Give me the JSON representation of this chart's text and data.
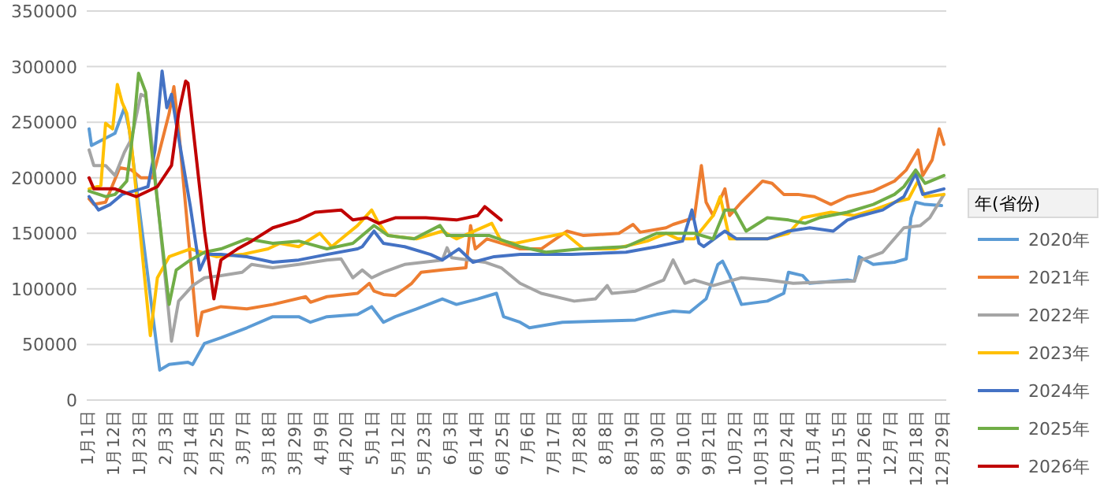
{
  "chart_data": {
    "type": "line",
    "legend_title": "年(省份)",
    "legend": "right",
    "grid": "y",
    "line_style": "solid",
    "ylim": [
      0,
      350000
    ],
    "yticks": [
      0,
      50000,
      100000,
      150000,
      200000,
      250000,
      300000,
      350000
    ],
    "xlim": [
      "--01-01",
      "--12-31"
    ],
    "xticks": [
      {
        "value": "--01-01",
        "label": "1月1日"
      },
      {
        "value": "--01-12",
        "label": "1月12日"
      },
      {
        "value": "--01-23",
        "label": "1月23日"
      },
      {
        "value": "--02-03",
        "label": "2月3日"
      },
      {
        "value": "--02-14",
        "label": "2月14日"
      },
      {
        "value": "--02-25",
        "label": "2月25日"
      },
      {
        "value": "--03-07",
        "label": "3月7日"
      },
      {
        "value": "--03-18",
        "label": "3月18日"
      },
      {
        "value": "--03-29",
        "label": "3月29日"
      },
      {
        "value": "--04-09",
        "label": "4月9日"
      },
      {
        "value": "--04-20",
        "label": "4月20日"
      },
      {
        "value": "--05-01",
        "label": "5月1日"
      },
      {
        "value": "--05-12",
        "label": "5月12日"
      },
      {
        "value": "--05-23",
        "label": "5月23日"
      },
      {
        "value": "--06-03",
        "label": "6月3日"
      },
      {
        "value": "--06-14",
        "label": "6月14日"
      },
      {
        "value": "--06-25",
        "label": "6月25日"
      },
      {
        "value": "--07-06",
        "label": "7月6日"
      },
      {
        "value": "--07-17",
        "label": "7月17日"
      },
      {
        "value": "--07-28",
        "label": "7月28日"
      },
      {
        "value": "--08-08",
        "label": "8月8日"
      },
      {
        "value": "--08-19",
        "label": "8月19日"
      },
      {
        "value": "--08-30",
        "label": "8月30日"
      },
      {
        "value": "--09-10",
        "label": "9月10日"
      },
      {
        "value": "--09-21",
        "label": "9月21日"
      },
      {
        "value": "--10-02",
        "label": "10月2日"
      },
      {
        "value": "--10-13",
        "label": "10月13日"
      },
      {
        "value": "--10-24",
        "label": "10月24日"
      },
      {
        "value": "--11-04",
        "label": "11月4日"
      },
      {
        "value": "--11-15",
        "label": "11月15日"
      },
      {
        "value": "--11-26",
        "label": "11月26日"
      },
      {
        "value": "--12-07",
        "label": "12月7日"
      },
      {
        "value": "--12-18",
        "label": "12月18日"
      },
      {
        "value": "--12-29",
        "label": "12月29日"
      }
    ],
    "series": [
      {
        "name": "2020年",
        "color": "#5b9bd5",
        "x": [
          "--01-02",
          "--01-03",
          "--01-13",
          "--01-17",
          "--01-19",
          "--02-01",
          "--02-05",
          "--02-13",
          "--02-15",
          "--02-20",
          "--02-27",
          "--03-09",
          "--03-20",
          "--03-31",
          "--04-05",
          "--04-12",
          "--04-25",
          "--05-01",
          "--05-06",
          "--05-11",
          "--05-20",
          "--05-31",
          "--06-06",
          "--06-15",
          "--06-23",
          "--06-26",
          "--07-03",
          "--07-07",
          "--07-21",
          "--08-06",
          "--08-21",
          "--08-30",
          "--09-06",
          "--09-13",
          "--09-20",
          "--09-25",
          "--09-27",
          "--09-30",
          "--10-05",
          "--10-16",
          "--10-23",
          "--10-25",
          "--10-31",
          "--11-03",
          "--11-19",
          "--11-22",
          "--11-24",
          "--11-30",
          "--12-09",
          "--12-14",
          "--12-16",
          "--12-18",
          "--12-22",
          "--12-29"
        ],
        "values": [
          244000,
          229000,
          240000,
          263000,
          244000,
          27000,
          32000,
          34000,
          32000,
          51000,
          56000,
          65000,
          75000,
          75000,
          70000,
          75000,
          77000,
          84000,
          70000,
          75000,
          82000,
          91000,
          86000,
          91000,
          96000,
          75000,
          70000,
          65000,
          70000,
          71000,
          72000,
          77000,
          80000,
          79000,
          91000,
          122000,
          125000,
          112000,
          86000,
          89000,
          96000,
          115000,
          112000,
          105000,
          108000,
          107000,
          129000,
          122000,
          124000,
          127000,
          164000,
          178000,
          176000,
          175000
        ]
      },
      {
        "name": "2021年",
        "color": "#ed7d31",
        "x": [
          "--01-02",
          "--01-04",
          "--01-09",
          "--01-15",
          "--01-20",
          "--01-24",
          "--01-29",
          "--02-05",
          "--02-07",
          "--02-09",
          "--02-17",
          "--02-19",
          "--02-27",
          "--03-09",
          "--03-20",
          "--04-03",
          "--04-05",
          "--04-12",
          "--04-25",
          "--04-30",
          "--05-02",
          "--05-06",
          "--05-11",
          "--05-18",
          "--05-22",
          "--05-31",
          "--06-10",
          "--06-12",
          "--06-14",
          "--06-19",
          "--07-03",
          "--07-12",
          "--07-23",
          "--07-30",
          "--08-14",
          "--08-20",
          "--08-23",
          "--09-03",
          "--09-06",
          "--09-15",
          "--09-18",
          "--09-20",
          "--09-23",
          "--09-28",
          "--09-30",
          "--10-05",
          "--10-14",
          "--10-18",
          "--10-23",
          "--10-29",
          "--11-05",
          "--11-12",
          "--11-19",
          "--11-30",
          "--12-09",
          "--12-14",
          "--12-19",
          "--12-21",
          "--12-25",
          "--12-28",
          "--12-30"
        ],
        "values": [
          181000,
          176000,
          178000,
          209000,
          207000,
          200000,
          200000,
          258000,
          282000,
          244000,
          58000,
          79000,
          84000,
          82000,
          86000,
          93000,
          88000,
          93000,
          96000,
          105000,
          98000,
          95000,
          94000,
          105000,
          115000,
          117000,
          119000,
          157000,
          136000,
          145000,
          136000,
          136000,
          152000,
          148000,
          150000,
          158000,
          151000,
          155000,
          158000,
          164000,
          211000,
          178000,
          166000,
          190000,
          166000,
          178000,
          197000,
          195000,
          185000,
          185000,
          183000,
          176000,
          183000,
          188000,
          197000,
          207000,
          225000,
          202000,
          216000,
          244000,
          230000
        ]
      },
      {
        "name": "2022年",
        "color": "#a5a5a5",
        "x": [
          "--01-02",
          "--01-04",
          "--01-09",
          "--01-13",
          "--01-17",
          "--01-20",
          "--01-24",
          "--01-26",
          "--01-28",
          "--02-06",
          "--02-09",
          "--02-15",
          "--02-20",
          "--02-27",
          "--03-07",
          "--03-11",
          "--03-20",
          "--03-31",
          "--04-12",
          "--04-18",
          "--04-23",
          "--04-27",
          "--05-01",
          "--05-06",
          "--05-15",
          "--05-31",
          "--06-02",
          "--06-04",
          "--06-18",
          "--06-25",
          "--07-03",
          "--07-12",
          "--07-26",
          "--08-04",
          "--08-09",
          "--08-11",
          "--08-21",
          "--09-02",
          "--09-06",
          "--09-11",
          "--09-15",
          "--09-23",
          "--10-05",
          "--10-16",
          "--10-27",
          "--11-07",
          "--11-22",
          "--11-25",
          "--12-04",
          "--12-13",
          "--12-20",
          "--12-24",
          "--12-30"
        ],
        "values": [
          225000,
          211000,
          211000,
          202000,
          223000,
          235000,
          275000,
          273000,
          244000,
          53000,
          89000,
          103000,
          110000,
          112000,
          115000,
          122000,
          119000,
          122000,
          126000,
          127000,
          110000,
          117000,
          110000,
          115000,
          122000,
          126000,
          137000,
          128000,
          124000,
          119000,
          105000,
          96000,
          89000,
          91000,
          103000,
          96000,
          98000,
          108000,
          126000,
          105000,
          108000,
          103000,
          110000,
          108000,
          105000,
          106000,
          107000,
          126000,
          133000,
          155000,
          157000,
          164000,
          185000
        ]
      },
      {
        "name": "2023年",
        "color": "#ffc000",
        "x": [
          "--01-02",
          "--01-07",
          "--01-09",
          "--01-12",
          "--01-14",
          "--01-16",
          "--01-18",
          "--01-20",
          "--01-28",
          "--01-31",
          "--02-05",
          "--02-14",
          "--02-25",
          "--03-07",
          "--03-18",
          "--03-23",
          "--03-31",
          "--04-09",
          "--04-14",
          "--04-25",
          "--05-01",
          "--05-04",
          "--05-08",
          "--05-20",
          "--05-31",
          "--06-06",
          "--06-21",
          "--06-25",
          "--07-01",
          "--07-10",
          "--07-22",
          "--07-30",
          "--08-12",
          "--08-26",
          "--09-03",
          "--09-08",
          "--09-15",
          "--09-23",
          "--09-26",
          "--09-30",
          "--10-16",
          "--10-25",
          "--10-31",
          "--11-12",
          "--11-22",
          "--11-30",
          "--12-09",
          "--12-15",
          "--12-19",
          "--12-22",
          "--12-30"
        ],
        "values": [
          190000,
          193000,
          249000,
          244000,
          284000,
          268000,
          258000,
          230000,
          58000,
          110000,
          129000,
          136000,
          129000,
          131000,
          136000,
          141000,
          138000,
          150000,
          138000,
          157000,
          171000,
          159000,
          148000,
          145000,
          152000,
          145000,
          159000,
          143000,
          141000,
          145000,
          150000,
          136000,
          136000,
          143000,
          150000,
          145000,
          145000,
          166000,
          183000,
          145000,
          145000,
          150000,
          164000,
          169000,
          166000,
          171000,
          178000,
          181000,
          197000,
          183000,
          185000
        ]
      },
      {
        "name": "2024年",
        "color": "#4472c4",
        "x": [
          "--01-02",
          "--01-06",
          "--01-11",
          "--01-16",
          "--01-24",
          "--01-27",
          "--01-30",
          "--02-02",
          "--02-04",
          "--02-06",
          "--02-08",
          "--02-14",
          "--02-18",
          "--02-21",
          "--02-27",
          "--03-09",
          "--03-20",
          "--03-31",
          "--04-12",
          "--04-25",
          "--04-27",
          "--05-02",
          "--05-06",
          "--05-15",
          "--05-26",
          "--05-31",
          "--06-07",
          "--06-13",
          "--06-22",
          "--07-03",
          "--07-25",
          "--08-17",
          "--08-30",
          "--09-10",
          "--09-14",
          "--09-17",
          "--09-19",
          "--09-28",
          "--10-03",
          "--10-16",
          "--10-25",
          "--11-03",
          "--11-13",
          "--11-19",
          "--11-25",
          "--12-04",
          "--12-13",
          "--12-18",
          "--12-21",
          "--12-30"
        ],
        "values": [
          183000,
          171000,
          176000,
          185000,
          190000,
          192000,
          225000,
          296000,
          263000,
          275000,
          249000,
          174000,
          117000,
          131000,
          131000,
          129000,
          124000,
          126000,
          131000,
          136000,
          138000,
          152000,
          141000,
          138000,
          131000,
          126000,
          136000,
          124000,
          129000,
          131000,
          131000,
          133000,
          138000,
          143000,
          171000,
          141000,
          138000,
          152000,
          145000,
          145000,
          152000,
          155000,
          152000,
          162000,
          166000,
          171000,
          183000,
          204000,
          185000,
          190000
        ]
      },
      {
        "name": "2025年",
        "color": "#70ad47",
        "x": [
          "--01-02",
          "--01-09",
          "--01-13",
          "--01-18",
          "--01-21",
          "--01-23",
          "--01-26",
          "--01-29",
          "--02-05",
          "--02-08",
          "--02-14",
          "--02-20",
          "--02-27",
          "--03-09",
          "--03-20",
          "--03-31",
          "--04-12",
          "--04-23",
          "--05-02",
          "--05-08",
          "--05-19",
          "--05-30",
          "--06-02",
          "--06-20",
          "--07-03",
          "--07-14",
          "--07-29",
          "--08-17",
          "--08-30",
          "--09-15",
          "--09-23",
          "--09-28",
          "--10-02",
          "--10-07",
          "--10-16",
          "--10-25",
          "--11-01",
          "--11-07",
          "--11-19",
          "--11-30",
          "--12-09",
          "--12-13",
          "--12-18",
          "--12-22",
          "--12-30"
        ],
        "values": [
          188000,
          183000,
          185000,
          197000,
          247000,
          294000,
          277000,
          216000,
          86000,
          117000,
          126000,
          133000,
          136000,
          145000,
          141000,
          143000,
          136000,
          141000,
          157000,
          148000,
          145000,
          157000,
          148000,
          148000,
          138000,
          133000,
          136000,
          138000,
          150000,
          150000,
          145000,
          171000,
          171000,
          152000,
          164000,
          162000,
          159000,
          164000,
          169000,
          176000,
          185000,
          192000,
          207000,
          195000,
          202000
        ]
      },
      {
        "name": "2026年",
        "color": "#c00000",
        "x": [
          "--01-02",
          "--01-04",
          "--01-13",
          "--01-22",
          "--01-31",
          "--02-06",
          "--02-09",
          "--02-12",
          "--02-13",
          "--02-20",
          "--02-24",
          "--02-27",
          "--03-05",
          "--03-11",
          "--03-20",
          "--03-31",
          "--04-07",
          "--04-18",
          "--04-23",
          "--04-29",
          "--05-04",
          "--05-11",
          "--05-24",
          "--06-06",
          "--06-15",
          "--06-18",
          "--06-25"
        ],
        "values": [
          200000,
          190000,
          190000,
          183000,
          192000,
          211000,
          258000,
          287000,
          285000,
          152000,
          91000,
          126000,
          136000,
          143000,
          155000,
          162000,
          169000,
          171000,
          162000,
          164000,
          159000,
          164000,
          164000,
          162000,
          166000,
          174000,
          162000
        ]
      }
    ]
  }
}
